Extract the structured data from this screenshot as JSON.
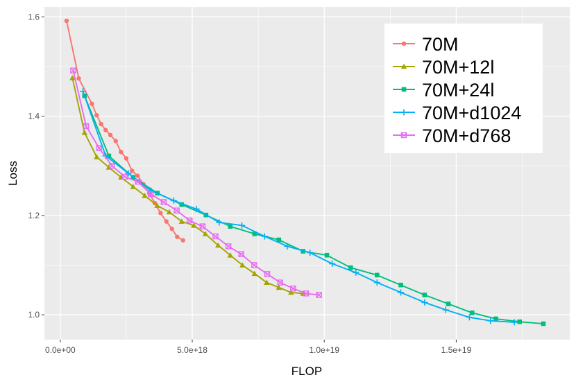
{
  "chart_data": {
    "type": "line",
    "title": "",
    "xlabel": "FLOP",
    "ylabel": "Loss",
    "xlim": [
      -6e+17,
      1.93e+19
    ],
    "ylim": [
      0.95,
      1.62
    ],
    "x_ticks": [
      {
        "value": 0,
        "label": "0.0e+00"
      },
      {
        "value": 5e+18,
        "label": "5.0e+18"
      },
      {
        "value": 1e+19,
        "label": "1.0e+19"
      },
      {
        "value": 1.5e+19,
        "label": "1.5e+19"
      }
    ],
    "y_ticks": [
      {
        "value": 1.0,
        "label": "1.0"
      },
      {
        "value": 1.2,
        "label": "1.2"
      },
      {
        "value": 1.4,
        "label": "1.4"
      },
      {
        "value": 1.6,
        "label": "1.6"
      }
    ],
    "legend_position": "top-right",
    "series": [
      {
        "name": "70M",
        "color": "#F8766D",
        "marker": "circle",
        "x": [
          2.4e+17,
          7e+17,
          1.2e+18,
          1.38e+18,
          1.55e+18,
          1.72e+18,
          1.9e+18,
          2.1e+18,
          2.3e+18,
          2.5e+18,
          2.72e+18,
          2.93e+18,
          3.15e+18,
          3.37e+18,
          3.58e+18,
          3.8e+18,
          4.02e+18,
          4.23e+18,
          4.43e+18,
          4.65e+18
        ],
        "y": [
          1.592,
          1.476,
          1.425,
          1.402,
          1.384,
          1.372,
          1.362,
          1.35,
          1.328,
          1.315,
          1.29,
          1.28,
          1.263,
          1.245,
          1.225,
          1.205,
          1.188,
          1.173,
          1.157,
          1.15
        ]
      },
      {
        "name": "70M+12l",
        "color": "#A3A500",
        "marker": "triangle",
        "x": [
          4.6e+17,
          9.2e+17,
          1.38e+18,
          1.84e+18,
          2.3e+18,
          2.76e+18,
          3.2e+18,
          3.67e+18,
          4.13e+18,
          4.6e+18,
          5.06e+18,
          5.5e+18,
          5.98e+18,
          6.44e+18,
          6.9e+18,
          7.36e+18,
          7.82e+18,
          8.28e+18,
          8.74e+18,
          9.2e+18
        ],
        "y": [
          1.477,
          1.367,
          1.318,
          1.297,
          1.277,
          1.258,
          1.24,
          1.22,
          1.207,
          1.188,
          1.18,
          1.163,
          1.14,
          1.12,
          1.1,
          1.083,
          1.065,
          1.055,
          1.045,
          1.043
        ]
      },
      {
        "name": "70M+24l",
        "color": "#00BF7D",
        "marker": "square",
        "x": [
          9.2e+17,
          1.84e+18,
          2.76e+18,
          3.68e+18,
          4.6e+18,
          5.52e+18,
          6.44e+18,
          7.36e+18,
          8.28e+18,
          9.2e+18,
          1.01e+19,
          1.1e+19,
          1.2e+19,
          1.29e+19,
          1.38e+19,
          1.47e+19,
          1.56e+19,
          1.65e+19,
          1.74e+19,
          1.83e+19
        ],
        "y": [
          1.441,
          1.32,
          1.277,
          1.245,
          1.222,
          1.201,
          1.178,
          1.163,
          1.151,
          1.128,
          1.12,
          1.095,
          1.08,
          1.06,
          1.04,
          1.022,
          1.004,
          0.992,
          0.986,
          0.982
        ]
      },
      {
        "name": "70M+d1024",
        "color": "#00B0F6",
        "marker": "plus",
        "x": [
          8.6e+17,
          1.72e+18,
          2.58e+18,
          3.44e+18,
          4.3e+18,
          5.16e+18,
          6.02e+18,
          6.88e+18,
          7.74e+18,
          8.6e+18,
          9.46e+18,
          1.03e+19,
          1.12e+19,
          1.2e+19,
          1.29e+19,
          1.38e+19,
          1.46e+19,
          1.55e+19,
          1.63e+19,
          1.72e+19
        ],
        "y": [
          1.45,
          1.32,
          1.285,
          1.25,
          1.23,
          1.213,
          1.186,
          1.18,
          1.158,
          1.138,
          1.125,
          1.103,
          1.085,
          1.065,
          1.045,
          1.025,
          1.01,
          0.995,
          0.988,
          0.985
        ]
      },
      {
        "name": "70M+d768",
        "color": "#E76BF3",
        "marker": "boxx",
        "x": [
          4.9e+17,
          9.8e+17,
          1.47e+18,
          1.96e+18,
          2.45e+18,
          2.94e+18,
          3.43e+18,
          3.92e+18,
          4.41e+18,
          4.9e+18,
          5.39e+18,
          5.88e+18,
          6.37e+18,
          6.86e+18,
          7.35e+18,
          7.84e+18,
          8.33e+18,
          8.82e+18,
          9.31e+18,
          9.8e+18
        ],
        "y": [
          1.492,
          1.38,
          1.336,
          1.3,
          1.278,
          1.268,
          1.243,
          1.227,
          1.21,
          1.19,
          1.178,
          1.158,
          1.138,
          1.122,
          1.1,
          1.082,
          1.065,
          1.053,
          1.043,
          1.04
        ]
      }
    ]
  }
}
